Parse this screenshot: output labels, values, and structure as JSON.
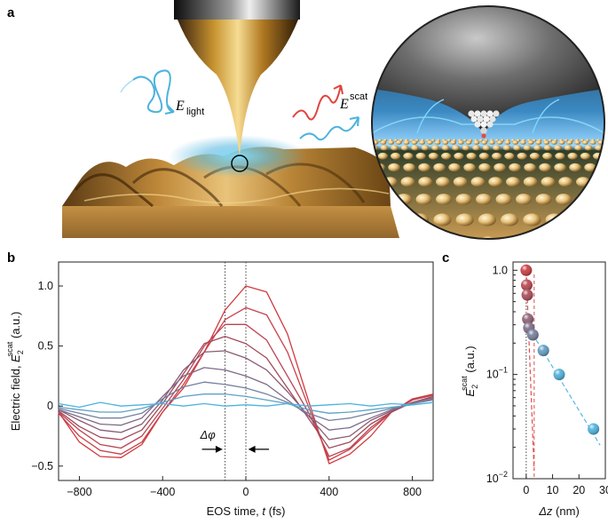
{
  "panels": {
    "a": {
      "letter": "a",
      "labels": {
        "e_light": "E",
        "e_light_sub": "light",
        "e_scat": "E",
        "e_scat_sup": "scat"
      }
    },
    "b": {
      "letter": "b"
    },
    "c": {
      "letter": "c"
    }
  },
  "colors": {
    "red": "#cc3b3f",
    "blue": "#4db3dd",
    "gold": "#b8862f",
    "dark": "#3a2410"
  },
  "chart_data": [
    {
      "id": "b",
      "type": "line",
      "xlabel": "EOS time, t (fs)",
      "ylabel": "Electric field, E2scat (a.u.)",
      "ylabel_parts": {
        "pre": "Electric field, ",
        "var": "E",
        "sub": "2",
        "sup": "scat",
        "post": " (a.u.)"
      },
      "xlabel_parts": {
        "pre": "EOS time, ",
        "var": "t",
        "post": " (fs)"
      },
      "xlim": [
        -900,
        900
      ],
      "ylim": [
        -0.62,
        1.2
      ],
      "xticks": [
        -800,
        -400,
        0,
        400,
        800
      ],
      "yticks": [
        -0.5,
        0,
        0.5,
        1.0
      ],
      "ytick_labels": [
        "−0.5",
        "0",
        "0.5",
        "1.0"
      ],
      "xtick_labels": [
        "−800",
        "−400",
        "0",
        "400",
        "800"
      ],
      "annotation": "Δφ",
      "vlines": [
        -100,
        0
      ],
      "x": [
        -900,
        -800,
        -700,
        -600,
        -500,
        -400,
        -300,
        -200,
        -100,
        0,
        100,
        200,
        300,
        400,
        500,
        600,
        700,
        800,
        900
      ],
      "series": [
        {
          "color": "#d23a3d",
          "values": [
            -0.05,
            -0.3,
            -0.42,
            -0.43,
            -0.32,
            -0.05,
            0.15,
            0.45,
            0.8,
            1.0,
            0.95,
            0.6,
            0.05,
            -0.48,
            -0.4,
            -0.25,
            -0.05,
            0.05,
            0.1
          ]
        },
        {
          "color": "#c9414a",
          "values": [
            -0.06,
            -0.25,
            -0.37,
            -0.4,
            -0.3,
            -0.05,
            0.18,
            0.45,
            0.72,
            0.82,
            0.76,
            0.45,
            0.0,
            -0.45,
            -0.36,
            -0.2,
            -0.05,
            0.06,
            0.1
          ]
        },
        {
          "color": "#bd4352",
          "values": [
            -0.05,
            -0.2,
            -0.32,
            -0.35,
            -0.25,
            -0.02,
            0.22,
            0.5,
            0.68,
            0.68,
            0.55,
            0.25,
            -0.05,
            -0.42,
            -0.35,
            -0.18,
            -0.05,
            0.05,
            0.09
          ]
        },
        {
          "color": "#a14a5b",
          "values": [
            -0.04,
            -0.17,
            -0.26,
            -0.28,
            -0.2,
            0.02,
            0.27,
            0.52,
            0.58,
            0.52,
            0.4,
            0.15,
            -0.1,
            -0.35,
            -0.3,
            -0.15,
            -0.05,
            0.03,
            0.08
          ]
        },
        {
          "color": "#8a5a72",
          "values": [
            -0.03,
            -0.12,
            -0.2,
            -0.22,
            -0.15,
            0.05,
            0.3,
            0.45,
            0.46,
            0.4,
            0.3,
            0.12,
            -0.08,
            -0.28,
            -0.25,
            -0.12,
            -0.04,
            0.03,
            0.07
          ]
        },
        {
          "color": "#7f6a8a",
          "values": [
            -0.03,
            -0.09,
            -0.15,
            -0.16,
            -0.1,
            0.08,
            0.25,
            0.32,
            0.3,
            0.25,
            0.18,
            0.05,
            -0.08,
            -0.2,
            -0.18,
            -0.1,
            -0.03,
            0.02,
            0.06
          ]
        },
        {
          "color": "#7480a0",
          "values": [
            -0.02,
            -0.06,
            -0.1,
            -0.1,
            -0.06,
            0.06,
            0.16,
            0.2,
            0.18,
            0.15,
            0.1,
            0.03,
            -0.06,
            -0.12,
            -0.1,
            -0.06,
            -0.02,
            0.02,
            0.05
          ]
        },
        {
          "color": "#5ea2c7",
          "values": [
            -0.01,
            -0.03,
            -0.05,
            -0.05,
            -0.02,
            0.03,
            0.08,
            0.1,
            0.1,
            0.08,
            0.05,
            0.02,
            -0.03,
            -0.06,
            -0.05,
            -0.03,
            -0.01,
            0.01,
            0.03
          ]
        },
        {
          "color": "#4db3dd",
          "values": [
            0.02,
            -0.01,
            0.03,
            0.0,
            0.01,
            0.02,
            0.0,
            0.02,
            0.0,
            0.01,
            0.0,
            0.02,
            0.0,
            0.01,
            0.02,
            0.0,
            0.02,
            0.01,
            0.03
          ]
        }
      ]
    },
    {
      "id": "c",
      "type": "scatter",
      "log_y": true,
      "xlabel": "Δz (nm)",
      "xlabel_parts": {
        "var": "Δz",
        "post": " (nm)"
      },
      "ylabel_parts": {
        "var": "E",
        "sub": "2",
        "sup": "scat",
        "post": " (a.u.)"
      },
      "xlim": [
        -5,
        30
      ],
      "ylim": [
        0.01,
        1.2
      ],
      "xticks": [
        0,
        10,
        20,
        30
      ],
      "xtick_labels": [
        "0",
        "10",
        "20",
        "30"
      ],
      "yticks": [
        0.01,
        0.1,
        1
      ],
      "ytick_labels": [
        [
          "10",
          "−2"
        ],
        [
          "10",
          "−1"
        ],
        [
          "1.0",
          ""
        ]
      ],
      "vlines": [
        0,
        1
      ],
      "points": [
        {
          "x": 0.0,
          "y": 1.0,
          "color": "#c8363b"
        },
        {
          "x": 0.2,
          "y": 0.72,
          "color": "#b8404a"
        },
        {
          "x": 0.4,
          "y": 0.58,
          "color": "#a84654"
        },
        {
          "x": 0.6,
          "y": 0.34,
          "color": "#8c5b70"
        },
        {
          "x": 1.0,
          "y": 0.28,
          "color": "#7a6a86"
        },
        {
          "x": 2.5,
          "y": 0.24,
          "color": "#727a98"
        },
        {
          "x": 6.5,
          "y": 0.17,
          "color": "#5b9ac2"
        },
        {
          "x": 12.5,
          "y": 0.1,
          "color": "#4aaed8"
        },
        {
          "x": 25.5,
          "y": 0.03,
          "color": "#48b0dd"
        }
      ],
      "fits": [
        {
          "color": "#e05050",
          "x": [
            0,
            3.0
          ],
          "y": [
            1.0,
            0.012
          ]
        },
        {
          "color": "#55b8e0",
          "x": [
            1,
            28
          ],
          "y": [
            0.28,
            0.021
          ]
        }
      ]
    }
  ]
}
